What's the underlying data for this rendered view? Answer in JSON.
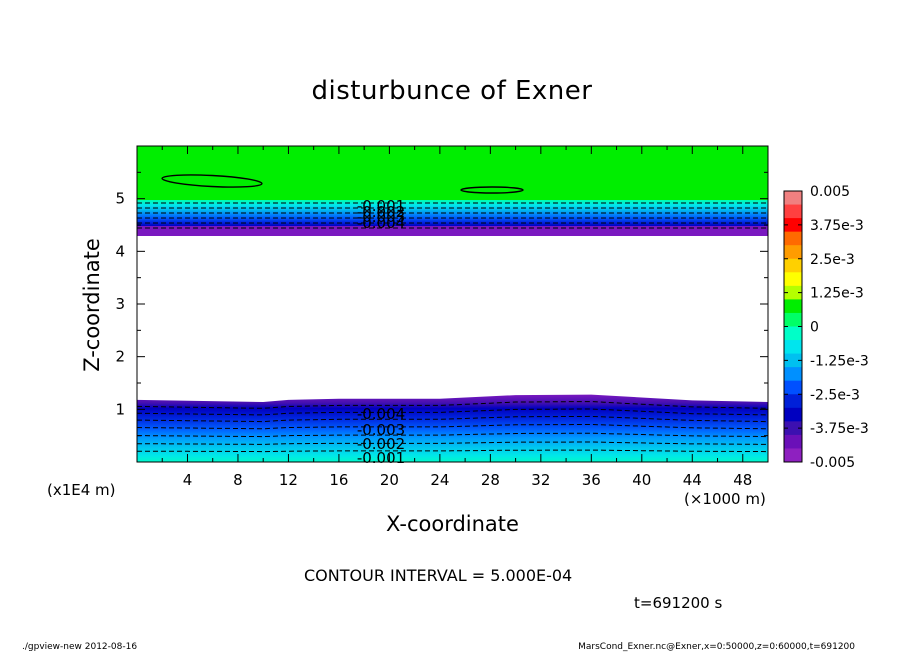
{
  "title": "disturbunce of Exner",
  "footer": {
    "left": "./gpview-new  2012-08-16",
    "right": "MarsCond_Exner.nc@Exner,x=0:50000,z=0:60000,t=691200"
  },
  "annotations": {
    "contour_interval": "CONTOUR INTERVAL = 5.000E-04",
    "time": "t=691200 s"
  },
  "chart_data": {
    "type": "contour",
    "title": "disturbunce of Exner",
    "xlabel": "X-coordinate",
    "ylabel": "Z-coordinate",
    "x_unit_label": "(×1000 m)",
    "y_unit_label": "(x1E4 m)",
    "xlim": [
      0,
      50
    ],
    "ylim": [
      0,
      6
    ],
    "x_ticks": [
      "4",
      "8",
      "12",
      "16",
      "20",
      "24",
      "28",
      "32",
      "36",
      "40",
      "44",
      "48"
    ],
    "y_ticks": [
      "1",
      "2",
      "3",
      "4",
      "5"
    ],
    "contour_interval": 0.0005,
    "colorbar": {
      "range": [
        -0.005,
        0.005
      ],
      "tick_labels": [
        "0.005",
        "3.75e-3",
        "2.5e-3",
        "1.25e-3",
        "0",
        "-1.25e-3",
        "-2.5e-3",
        "-3.75e-3",
        "-0.005"
      ],
      "colors": [
        "#f08080",
        "#ff4040",
        "#ff0000",
        "#ff6a00",
        "#ff9c00",
        "#ffd000",
        "#ffff00",
        "#b4ff00",
        "#00ee00",
        "#00ff66",
        "#00ffc8",
        "#00e5ee",
        "#00c0f0",
        "#0090ff",
        "#0050ff",
        "#0020d8",
        "#0000c0",
        "#3c10b0",
        "#6a10b8",
        "#8e20c0"
      ]
    },
    "contour_labels": {
      "upper_band": [
        "-0.001",
        "-0.002",
        "-0.003",
        "-0.004"
      ],
      "lower_band": [
        "-0.004",
        "-0.003",
        "-0.002",
        "-0.001"
      ]
    },
    "regions": {
      "top_zone_value": 0.0,
      "upper_band_z": [
        4.3,
        5.0
      ],
      "lower_band_z": [
        0.0,
        1.2
      ],
      "lower_band_top_profile": [
        {
          "x": 0,
          "z": 1.18
        },
        {
          "x": 10,
          "z": 1.14
        },
        {
          "x": 12,
          "z": 1.18
        },
        {
          "x": 16,
          "z": 1.2
        },
        {
          "x": 24,
          "z": 1.2
        },
        {
          "x": 30,
          "z": 1.27
        },
        {
          "x": 36,
          "z": 1.28
        },
        {
          "x": 44,
          "z": 1.17
        },
        {
          "x": 50,
          "z": 1.14
        }
      ]
    }
  }
}
